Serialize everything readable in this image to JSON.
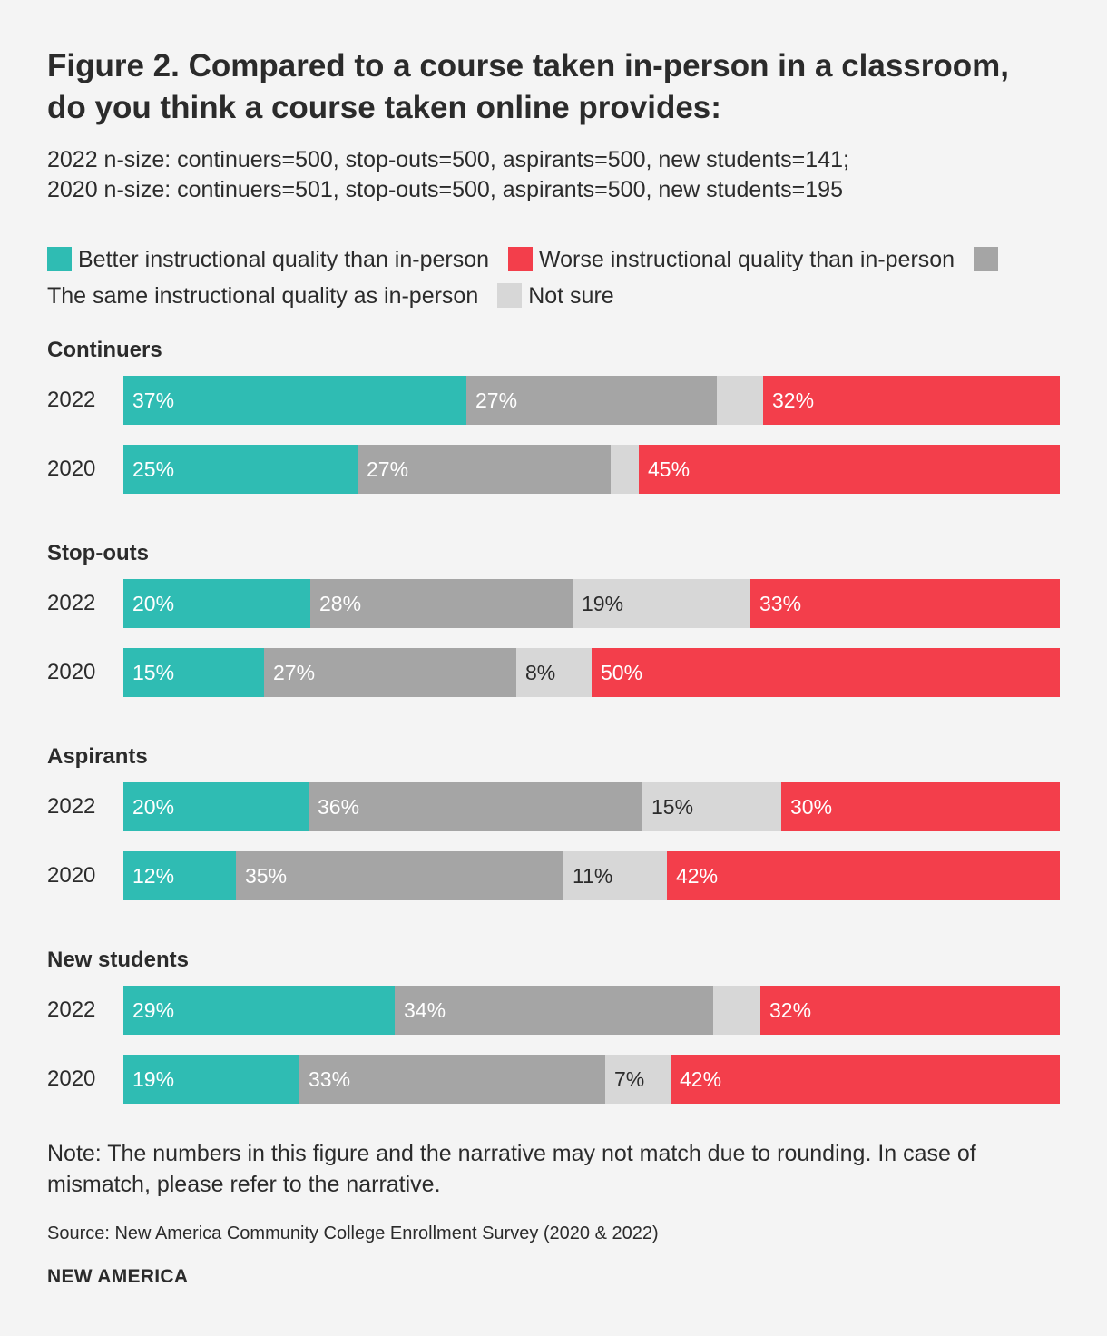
{
  "title": "Figure 2. Compared to a course taken in-person in a classroom, do you think a course taken online provides:",
  "subtitle_line1": "2022 n-size: continuers=500, stop-outs=500, aspirants=500, new students=141;",
  "subtitle_line2": "2020 n-size: continuers=501, stop-outs=500, aspirants=500, new students=195",
  "legend": [
    {
      "label": "Better instructional quality than in-person",
      "color": "#2fbcb3"
    },
    {
      "label": "Worse instructional quality than in-person",
      "color": "#f33e4b"
    },
    {
      "label": "The same instructional quality as in-person",
      "color": "#a5a5a5"
    },
    {
      "label": "Not sure",
      "color": "#d7d7d7"
    }
  ],
  "chart_data": {
    "type": "bar",
    "orientation": "horizontal",
    "stacked": true,
    "title": "Figure 2. Compared to a course taken in-person in a classroom, do you think a course taken online provides:",
    "series_order": [
      "Better",
      "Same",
      "Not sure",
      "Worse"
    ],
    "series_colors": [
      "#2fbcb3",
      "#a5a5a5",
      "#d7d7d7",
      "#f33e4b"
    ],
    "label_colors": [
      "#ffffff",
      "#ffffff",
      "#2b2b2b",
      "#ffffff"
    ],
    "groups": [
      {
        "name": "Continuers",
        "rows": [
          {
            "year": "2022",
            "values": [
              37,
              27,
              5,
              32
            ],
            "labels": [
              "37%",
              "27%",
              "",
              "32%"
            ]
          },
          {
            "year": "2020",
            "values": [
              25,
              27,
              3,
              45
            ],
            "labels": [
              "25%",
              "27%",
              "",
              "45%"
            ]
          }
        ]
      },
      {
        "name": "Stop-outs",
        "rows": [
          {
            "year": "2022",
            "values": [
              20,
              28,
              19,
              33
            ],
            "labels": [
              "20%",
              "28%",
              "19%",
              "33%"
            ]
          },
          {
            "year": "2020",
            "values": [
              15,
              27,
              8,
              50
            ],
            "labels": [
              "15%",
              "27%",
              "8%",
              "50%"
            ]
          }
        ]
      },
      {
        "name": "Aspirants",
        "rows": [
          {
            "year": "2022",
            "values": [
              20,
              36,
              15,
              30
            ],
            "labels": [
              "20%",
              "36%",
              "15%",
              "30%"
            ]
          },
          {
            "year": "2020",
            "values": [
              12,
              35,
              11,
              42
            ],
            "labels": [
              "12%",
              "35%",
              "11%",
              "42%"
            ]
          }
        ]
      },
      {
        "name": "New students",
        "rows": [
          {
            "year": "2022",
            "values": [
              29,
              34,
              5,
              32
            ],
            "labels": [
              "29%",
              "34%",
              "",
              "32%"
            ]
          },
          {
            "year": "2020",
            "values": [
              19,
              33,
              7,
              42
            ],
            "labels": [
              "19%",
              "33%",
              "7%",
              "42%"
            ]
          }
        ]
      }
    ]
  },
  "note": "Note: The numbers in this figure and the narrative may not match due to rounding. In case of mismatch, please refer to the narrative.",
  "source": "Source: New America Community College Enrollment Survey (2020 & 2022)",
  "brand": "NEW AMERICA"
}
